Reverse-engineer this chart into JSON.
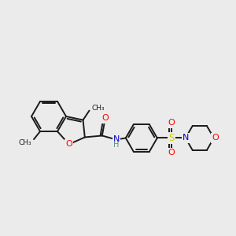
{
  "background_color": "#ebebeb",
  "bond_color": "#1a1a1a",
  "atom_colors": {
    "O": "#ff0000",
    "N": "#0000cc",
    "S": "#cccc00",
    "H": "#5a8a8a"
  },
  "lw": 1.4,
  "fontsize": 7.5
}
